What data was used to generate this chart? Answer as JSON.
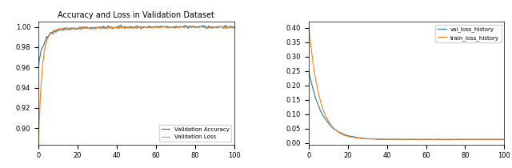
{
  "left_title": "Accuracy and Loss in Validation Dataset",
  "left_xlim": [
    0,
    100
  ],
  "left_ylim": [
    0.884,
    1.005
  ],
  "left_yticks": [
    0.9,
    0.92,
    0.94,
    0.96,
    0.98,
    1.0
  ],
  "left_xticks": [
    0,
    20,
    40,
    60,
    80,
    100
  ],
  "left_legend": [
    "Validation Accuracy",
    "Validation Loss"
  ],
  "right_xlim": [
    0,
    100
  ],
  "right_ylim": [
    -0.005,
    0.42
  ],
  "right_yticks": [
    0.0,
    0.05,
    0.1,
    0.15,
    0.2,
    0.25,
    0.3,
    0.35,
    0.4
  ],
  "right_xticks": [
    0,
    20,
    40,
    60,
    80,
    100
  ],
  "right_legend": [
    "val_loss_history",
    "train_loss_history"
  ],
  "blue_color": "#1f77b4",
  "orange_color": "#ff7f0e",
  "line_width": 0.8,
  "n_points": 500,
  "seed": 42
}
